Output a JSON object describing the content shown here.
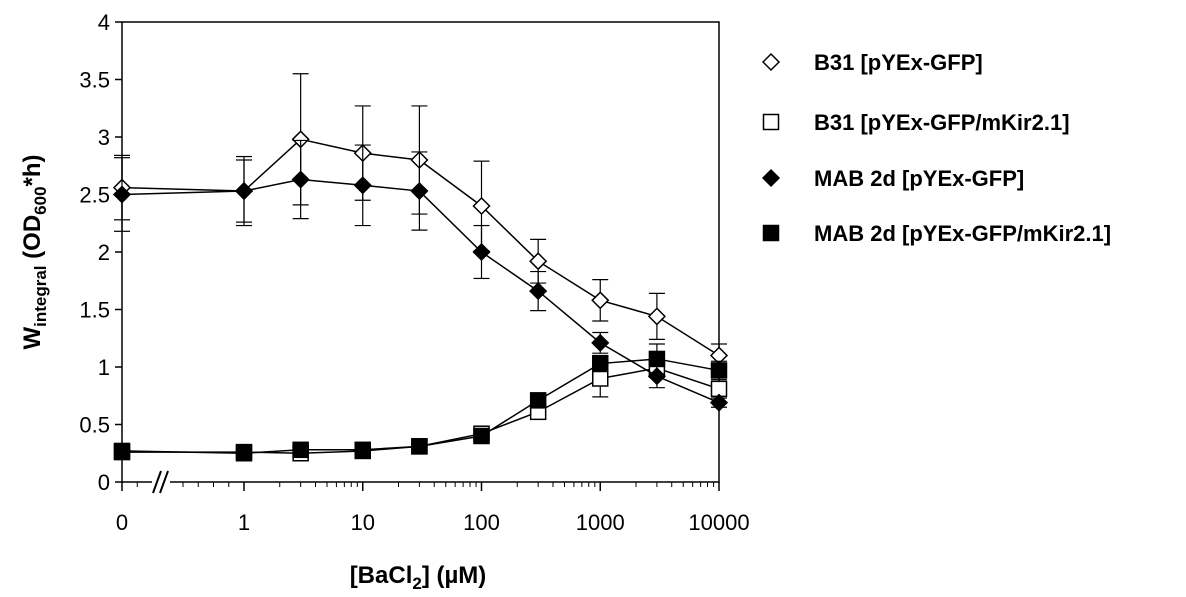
{
  "chart_data": {
    "type": "line",
    "xlabel_parts": [
      "[BaCl",
      "2",
      "] (µM)"
    ],
    "ylabel_parts": [
      "W",
      "integral",
      " (OD",
      "600",
      "*h)"
    ],
    "x_axis_scale": "log with broken axis for 0",
    "x_ticks": [
      "0",
      "1",
      "10",
      "100",
      "1000",
      "10000"
    ],
    "y_ticks": [
      "0",
      "0.5",
      "1",
      "1.5",
      "2",
      "2.5",
      "3",
      "3.5",
      "4"
    ],
    "ylim": [
      0,
      4
    ],
    "grid": false,
    "legend_position": "right",
    "x": [
      "0",
      "1",
      "3",
      "10",
      "30",
      "100",
      "300",
      "1000",
      "3000",
      "10000"
    ],
    "series": [
      {
        "name": "B31 [pYEx-GFP]",
        "marker": "diamond-open",
        "values": [
          2.56,
          2.53,
          2.98,
          2.86,
          2.8,
          2.4,
          1.92,
          1.58,
          1.44,
          1.1
        ],
        "error": [
          0.28,
          0.3,
          0.57,
          0.41,
          0.47,
          0.39,
          0.19,
          0.18,
          0.2,
          0.1
        ]
      },
      {
        "name": "B31 [pYEx-GFP/mKir2.1]",
        "marker": "square-open",
        "values": [
          0.26,
          0.26,
          0.25,
          0.27,
          0.31,
          0.42,
          0.61,
          0.9,
          0.99,
          0.81
        ],
        "error": [
          0.02,
          0.02,
          0.02,
          0.02,
          0.02,
          0.03,
          0.06,
          0.16,
          0.08,
          0.06
        ]
      },
      {
        "name": "MAB 2d [pYEx-GFP]",
        "marker": "diamond-filled",
        "values": [
          2.5,
          2.53,
          2.63,
          2.58,
          2.53,
          2.0,
          1.66,
          1.21,
          0.92,
          0.69
        ],
        "error": [
          0.32,
          0.27,
          0.34,
          0.35,
          0.34,
          0.23,
          0.17,
          0.09,
          0.1,
          0.04
        ]
      },
      {
        "name": "MAB 2d [pYEx-GFP/mKir2.1]",
        "marker": "square-filled",
        "values": [
          0.27,
          0.25,
          0.28,
          0.28,
          0.31,
          0.4,
          0.71,
          1.03,
          1.07,
          0.97
        ],
        "error": [
          0.02,
          0.02,
          0.02,
          0.02,
          0.02,
          0.03,
          0.04,
          0.07,
          0.13,
          0.08
        ]
      }
    ]
  }
}
